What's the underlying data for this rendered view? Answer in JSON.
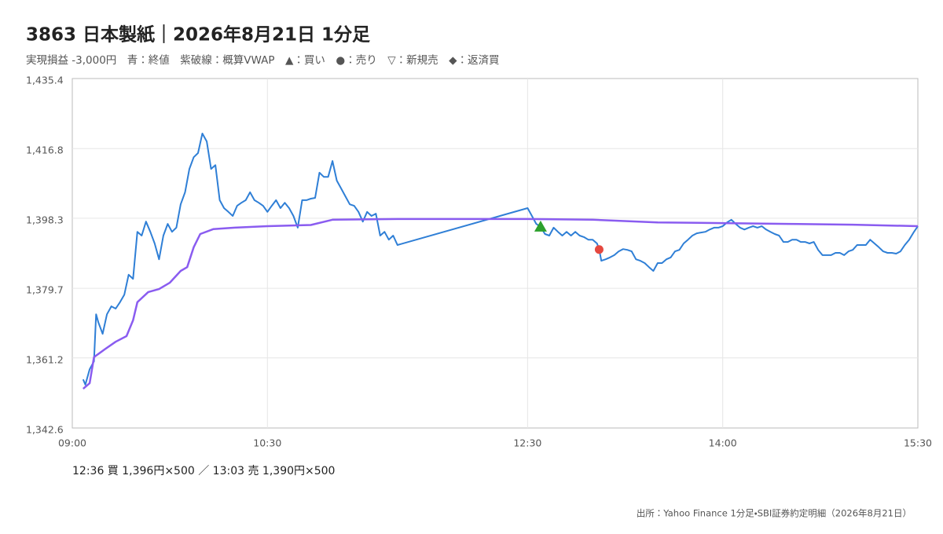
{
  "chart_data": {
    "type": "line",
    "title": "3863 日本製紙｜2026年8月21日 1分足",
    "subtitle": "実現損益 -3,000円　青：終値　紫破線：概算VWAP　▲：買い　●：売り　▽：新規売　◆：返済買",
    "trade_note": "12:36 買 1,396円×500 ／ 13:03 売 1,390円×500",
    "source": "出所：Yahoo Finance 1分足・SBI証券約定明細（2026年8月21日）",
    "xlim": [
      "09:00",
      "15:30"
    ],
    "xticks": [
      "09:00",
      "10:30",
      "12:30",
      "14:00",
      "15:30"
    ],
    "ylim": [
      1342.6,
      1435.4
    ],
    "yticks": [
      {
        "value": 1342.6,
        "label": "1,342.6"
      },
      {
        "value": 1361.2,
        "label": "1,361.2"
      },
      {
        "value": 1379.7,
        "label": "1,379.7"
      },
      {
        "value": 1398.3,
        "label": "1,398.3"
      },
      {
        "value": 1416.8,
        "label": "1,416.8"
      },
      {
        "value": 1435.4,
        "label": "1,435.4"
      }
    ],
    "grid": true,
    "x": [
      "09:05",
      "09:06",
      "09:08",
      "09:10",
      "09:11",
      "09:12",
      "09:14",
      "09:16",
      "09:18",
      "09:20",
      "09:22",
      "09:24",
      "09:26",
      "09:28",
      "09:30",
      "09:32",
      "09:34",
      "09:36",
      "09:38",
      "09:40",
      "09:42",
      "09:44",
      "09:46",
      "09:48",
      "09:50",
      "09:52",
      "09:54",
      "09:56",
      "09:58",
      "10:00",
      "10:02",
      "10:04",
      "10:06",
      "10:08",
      "10:10",
      "10:12",
      "10:14",
      "10:16",
      "10:18",
      "10:20",
      "10:22",
      "10:24",
      "10:26",
      "10:28",
      "10:30",
      "10:32",
      "10:34",
      "10:36",
      "10:38",
      "10:40",
      "10:42",
      "10:44",
      "10:46",
      "10:48",
      "10:50",
      "10:52",
      "10:54",
      "10:56",
      "10:58",
      "11:00",
      "11:02",
      "11:04",
      "11:06",
      "11:08",
      "11:10",
      "11:12",
      "11:14",
      "11:16",
      "11:18",
      "11:20",
      "11:22",
      "11:24",
      "11:26",
      "11:28",
      "11:30",
      "12:30",
      "12:32",
      "12:34",
      "12:36",
      "12:38",
      "12:40",
      "12:42",
      "12:44",
      "12:46",
      "12:48",
      "12:50",
      "12:52",
      "12:54",
      "12:56",
      "12:58",
      "13:00",
      "13:02",
      "13:03",
      "13:04",
      "13:06",
      "13:08",
      "13:10",
      "13:12",
      "13:14",
      "13:16",
      "13:18",
      "13:20",
      "13:22",
      "13:24",
      "13:26",
      "13:28",
      "13:30",
      "13:32",
      "13:34",
      "13:36",
      "13:38",
      "13:40",
      "13:42",
      "13:44",
      "13:46",
      "13:48",
      "13:50",
      "13:52",
      "13:54",
      "13:56",
      "13:58",
      "14:00",
      "14:02",
      "14:04",
      "14:06",
      "14:08",
      "14:10",
      "14:12",
      "14:14",
      "14:16",
      "14:18",
      "14:20",
      "14:22",
      "14:24",
      "14:26",
      "14:28",
      "14:30",
      "14:32",
      "14:34",
      "14:36",
      "14:38",
      "14:40",
      "14:42",
      "14:44",
      "14:46",
      "14:48",
      "14:50",
      "14:52",
      "14:54",
      "14:56",
      "14:58",
      "15:00",
      "15:02",
      "15:04",
      "15:06",
      "15:08",
      "15:10",
      "15:12",
      "15:14",
      "15:16",
      "15:18",
      "15:20",
      "15:22",
      "15:24",
      "15:26",
      "15:28",
      "15:30"
    ],
    "series": [
      {
        "name": "終値",
        "color": "#2f7fd6",
        "values": [
          1355.5,
          1354.1,
          1358.2,
          1360.3,
          1372.8,
          1370.7,
          1367.6,
          1372.8,
          1374.9,
          1374.3,
          1376.0,
          1378.0,
          1383.3,
          1382.2,
          1394.7,
          1393.7,
          1397.4,
          1394.7,
          1391.6,
          1387.4,
          1393.7,
          1396.8,
          1394.7,
          1395.8,
          1402.0,
          1405.2,
          1411.4,
          1414.5,
          1415.6,
          1420.8,
          1418.7,
          1411.4,
          1412.4,
          1403.1,
          1401.0,
          1400.0,
          1398.9,
          1401.6,
          1402.4,
          1403.1,
          1405.2,
          1403.1,
          1402.4,
          1401.6,
          1400.0,
          1401.6,
          1403.1,
          1401.0,
          1402.4,
          1401.0,
          1398.9,
          1395.8,
          1403.1,
          1403.1,
          1403.5,
          1403.7,
          1410.4,
          1409.3,
          1409.3,
          1413.5,
          1408.3,
          1406.2,
          1404.1,
          1402.0,
          1401.6,
          1400.0,
          1397.4,
          1400.0,
          1398.9,
          1399.5,
          1393.7,
          1394.7,
          1392.6,
          1393.7,
          1391.2,
          1401.0,
          1398.9,
          1396.8,
          1396.0,
          1394.1,
          1393.7,
          1395.8,
          1394.7,
          1393.7,
          1394.7,
          1393.7,
          1394.7,
          1393.7,
          1393.3,
          1392.6,
          1392.6,
          1391.6,
          1390.1,
          1387.0,
          1387.4,
          1387.9,
          1388.5,
          1389.5,
          1390.1,
          1389.9,
          1389.5,
          1387.4,
          1387.0,
          1386.4,
          1385.3,
          1384.3,
          1386.4,
          1386.4,
          1387.4,
          1387.9,
          1389.5,
          1389.9,
          1391.6,
          1392.6,
          1393.7,
          1394.3,
          1394.5,
          1394.7,
          1395.3,
          1395.8,
          1395.8,
          1396.2,
          1397.2,
          1397.9,
          1396.8,
          1395.8,
          1395.3,
          1395.8,
          1396.2,
          1395.8,
          1396.2,
          1395.3,
          1394.7,
          1394.1,
          1393.7,
          1392.0,
          1392.0,
          1392.6,
          1392.6,
          1392.0,
          1392.0,
          1391.6,
          1392.0,
          1389.9,
          1388.5,
          1388.5,
          1388.5,
          1389.1,
          1389.1,
          1388.5,
          1389.5,
          1389.9,
          1391.2,
          1391.2,
          1391.2,
          1392.6,
          1391.6,
          1390.6,
          1389.5,
          1389.1,
          1389.1,
          1388.9,
          1389.5,
          1391.2,
          1392.6,
          1394.5,
          1396.2
        ]
      },
      {
        "name": "概算VWAP",
        "color": "#8a5cf0",
        "x": [
          "09:05",
          "09:08",
          "09:10",
          "09:15",
          "09:20",
          "09:25",
          "09:28",
          "09:30",
          "09:35",
          "09:40",
          "09:45",
          "09:50",
          "09:53",
          "09:56",
          "09:59",
          "10:05",
          "10:15",
          "10:30",
          "10:50",
          "11:00",
          "11:30",
          "12:30",
          "13:00",
          "13:30",
          "14:00",
          "14:30",
          "15:00",
          "15:30"
        ],
        "values": [
          1353.0,
          1354.5,
          1361.4,
          1363.5,
          1365.5,
          1367.0,
          1371.2,
          1376.0,
          1378.7,
          1379.5,
          1381.2,
          1384.3,
          1385.3,
          1390.6,
          1394.1,
          1395.4,
          1395.8,
          1396.2,
          1396.5,
          1397.9,
          1398.1,
          1398.1,
          1397.9,
          1397.2,
          1397.0,
          1396.8,
          1396.6,
          1396.2
        ]
      }
    ],
    "markers": [
      {
        "name": "買い",
        "x": "12:36",
        "value": 1396,
        "shape": "triangle",
        "color": "#2ca02c"
      },
      {
        "name": "売り",
        "x": "13:03",
        "value": 1390,
        "shape": "circle",
        "color": "#e5483f"
      }
    ]
  }
}
